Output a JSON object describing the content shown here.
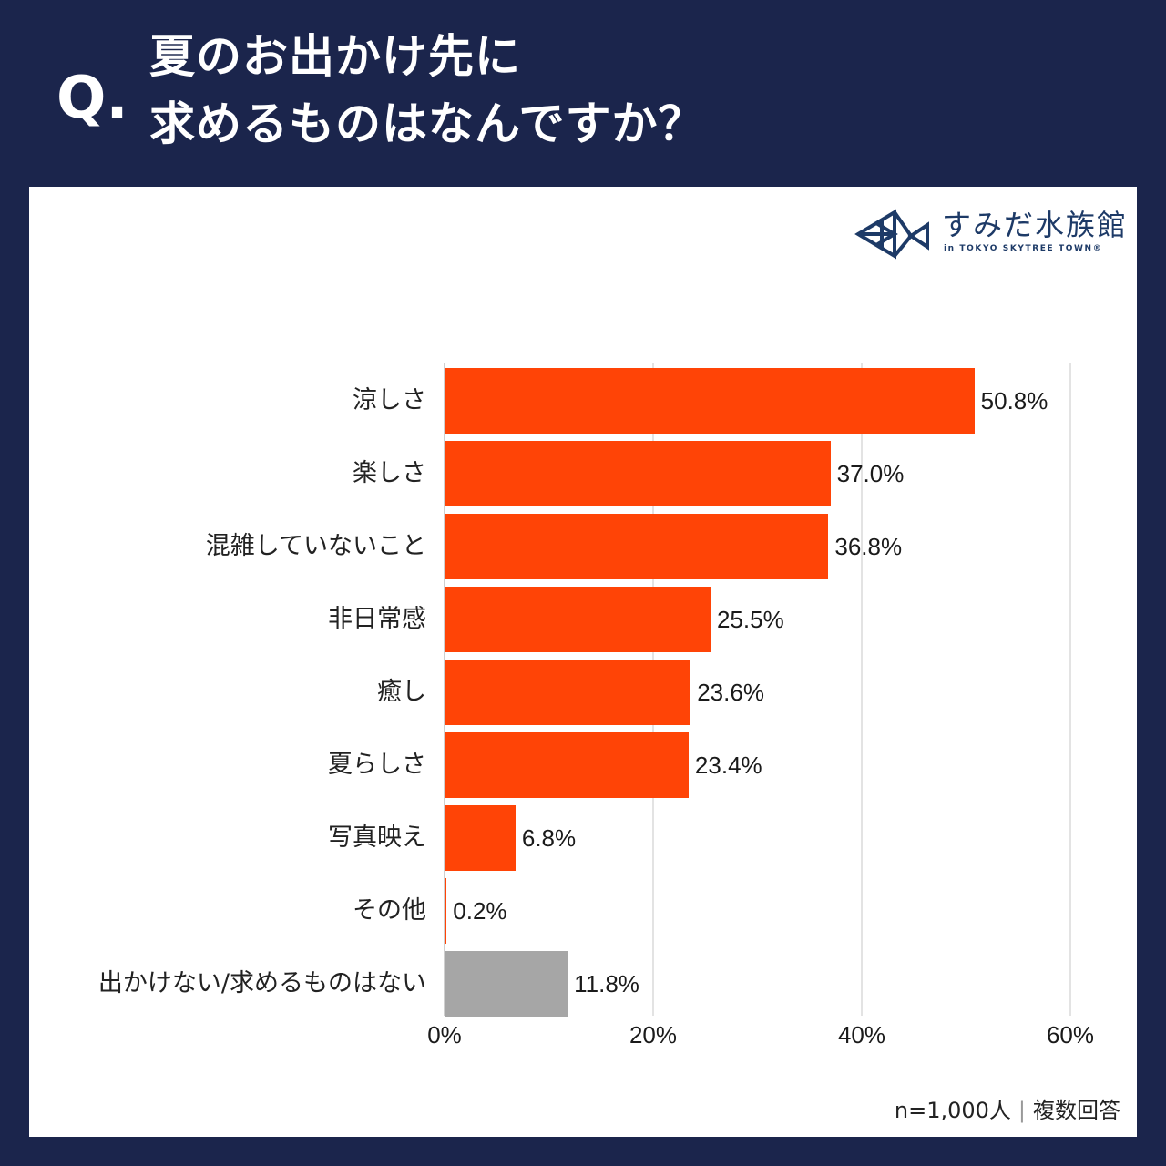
{
  "header": {
    "q_mark": "Q.",
    "title_line1": "夏のお出かけ先に",
    "title_line2": "求めるものはなんですか？"
  },
  "logo": {
    "icon": "fish-logo-icon",
    "name": "すみだ水族館",
    "sub": "in TOKYO SKYTREE TOWN®"
  },
  "colors": {
    "background": "#1b254c",
    "card": "#ffffff",
    "bar_primary": "#ff4406",
    "bar_other": "#a6a6a6",
    "logo": "#1d3a67"
  },
  "footnote": {
    "sample": "n=1,000人",
    "separator": "|",
    "note": "複数回答"
  },
  "chart_data": {
    "type": "bar",
    "orientation": "horizontal",
    "title": "夏のお出かけ先に求めるものはなんですか？",
    "xlabel": "",
    "ylabel": "",
    "xlim": [
      0,
      60
    ],
    "x_ticks": [
      "0%",
      "20%",
      "40%",
      "60%"
    ],
    "grid": true,
    "legend": null,
    "unit": "%",
    "categories": [
      "涼しさ",
      "楽しさ",
      "混雑していないこと",
      "非日常感",
      "癒し",
      "夏らしさ",
      "写真映え",
      "その他",
      "出かけない/求めるものはない"
    ],
    "values": [
      50.8,
      37.0,
      36.8,
      25.5,
      23.6,
      23.4,
      6.8,
      0.2,
      11.8
    ],
    "value_labels": [
      "50.8%",
      "37.0%",
      "36.8%",
      "25.5%",
      "23.6%",
      "23.4%",
      "6.8%",
      "0.2%",
      "11.8%"
    ],
    "bar_colors": [
      "#ff4406",
      "#ff4406",
      "#ff4406",
      "#ff4406",
      "#ff4406",
      "#ff4406",
      "#ff4406",
      "#ff4406",
      "#a6a6a6"
    ],
    "annotation": "n=1,000人 | 複数回答"
  }
}
